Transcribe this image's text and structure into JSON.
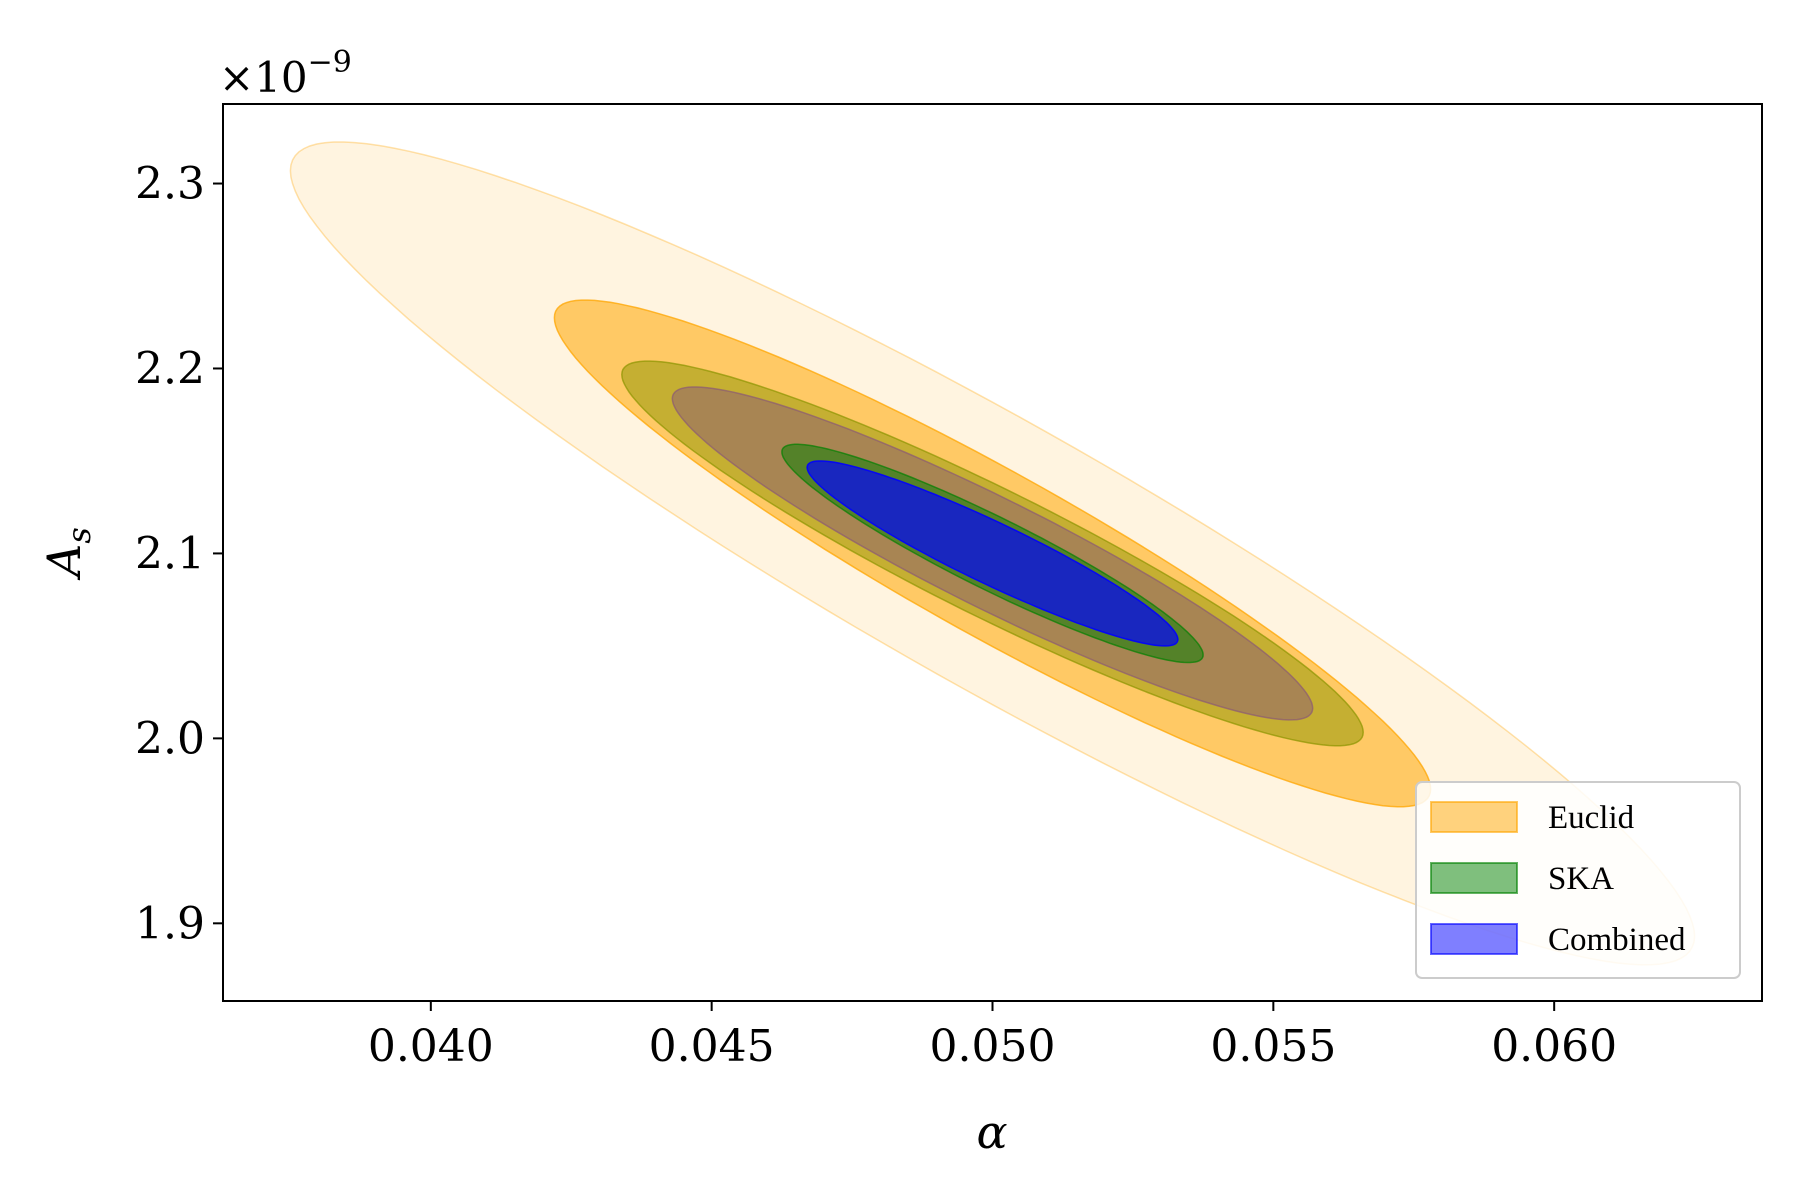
{
  "chart_data": {
    "type": "contour",
    "xlabel": "α",
    "ylabel_main": "A",
    "ylabel_sub": "s",
    "y_offset_text": "×10",
    "y_offset_exp": "−9",
    "xlim": [
      0.0363,
      0.0637
    ],
    "ylim": [
      1.858,
      2.343
    ],
    "x_ticks": [
      0.04,
      0.045,
      0.05,
      0.055,
      0.06
    ],
    "x_tick_labels": [
      "0.040",
      "0.045",
      "0.050",
      "0.055",
      "0.060"
    ],
    "y_ticks": [
      1.9,
      2.0,
      2.1,
      2.2,
      2.3
    ],
    "y_tick_labels": [
      "1.9",
      "2.0",
      "2.1",
      "2.2",
      "2.3"
    ],
    "center": {
      "alpha": 0.05,
      "As": 2.1
    },
    "series": [
      {
        "name": "Euclid",
        "fill": "#ffa500",
        "contours": [
          {
            "level": "2-sigma",
            "half_width_alpha": 0.0125,
            "half_height_As": 0.2225,
            "fill_opacity": 0.12
          },
          {
            "level": "1-sigma",
            "half_width_alpha": 0.0078,
            "half_height_As": 0.137,
            "fill_opacity": 0.55
          }
        ]
      },
      {
        "name": "SKA",
        "fill": "#008000",
        "contours": [
          {
            "level": "2-sigma",
            "half_width_alpha": 0.0066,
            "half_height_As": 0.104,
            "fill_opacity": 0.5
          },
          {
            "level": "1-sigma",
            "half_width_alpha": 0.00375,
            "half_height_As": 0.059,
            "fill_opacity": 0.5
          }
        ]
      },
      {
        "name": "Combined",
        "fill": "#0000ff",
        "contours": [
          {
            "level": "2-sigma",
            "half_width_alpha": 0.0057,
            "half_height_As": 0.09,
            "fill_opacity": 0.5
          },
          {
            "level": "1-sigma",
            "half_width_alpha": 0.0033,
            "half_height_As": 0.05,
            "fill_opacity": 0.7
          }
        ]
      }
    ],
    "legend": {
      "placement": "lower-right",
      "entries": [
        {
          "label": "Euclid",
          "fill": "#ffa500",
          "opacity": 0.5
        },
        {
          "label": "SKA",
          "fill": "#008000",
          "opacity": 0.5
        },
        {
          "label": "Combined",
          "fill": "#0000ff",
          "opacity": 0.5
        }
      ]
    },
    "grid": false
  }
}
